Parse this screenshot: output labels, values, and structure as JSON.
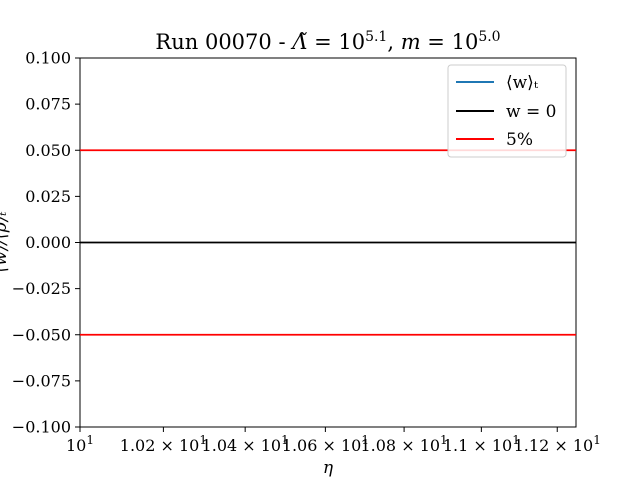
{
  "chart_data": {
    "type": "line",
    "title": "Run 00070 - Λ̃ = 10^5.1, m = 10^5.0",
    "title_parts": {
      "prefix": "Run 00070 - ",
      "lambda_symbol": "Λ̃",
      "lambda_value_base": "10",
      "lambda_value_exp": "5.1",
      "m_symbol": "m",
      "m_value_base": "10",
      "m_value_exp": "5.0"
    },
    "xlabel": "η",
    "ylabel": "⟨w⟩/⟨ρ⟩ₜ",
    "xscale": "log",
    "xlim": [
      10.0,
      11.25
    ],
    "ylim": [
      -0.1,
      0.1
    ],
    "x_ticks": [
      {
        "value": 10.0,
        "label": "10^1"
      },
      {
        "value": 10.2,
        "label": "1.02 × 10^1"
      },
      {
        "value": 10.4,
        "label": "1.04 × 10^1"
      },
      {
        "value": 10.6,
        "label": "1.06 × 10^1"
      },
      {
        "value": 10.8,
        "label": "1.08 × 10^1"
      },
      {
        "value": 11.0,
        "label": "1.1 × 10^1"
      },
      {
        "value": 11.2,
        "label": "1.12 × 10^1"
      }
    ],
    "y_ticks": [
      {
        "value": 0.1,
        "label": "0.100"
      },
      {
        "value": 0.075,
        "label": "0.075"
      },
      {
        "value": 0.05,
        "label": "0.050"
      },
      {
        "value": 0.025,
        "label": "0.025"
      },
      {
        "value": 0.0,
        "label": "0.000"
      },
      {
        "value": -0.025,
        "label": "−0.025"
      },
      {
        "value": -0.05,
        "label": "−0.050"
      },
      {
        "value": -0.075,
        "label": "−0.075"
      },
      {
        "value": -0.1,
        "label": "−0.100"
      }
    ],
    "series": [
      {
        "name": "⟨w⟩ₜ",
        "color": "#1f77b4",
        "x": [],
        "y": []
      },
      {
        "name": "w = 0",
        "color": "#000000",
        "hline": 0.0
      },
      {
        "name": "5%",
        "color": "#ff0000",
        "hlines": [
          0.05,
          -0.05
        ]
      }
    ],
    "legend": "top-right",
    "grid": false
  }
}
